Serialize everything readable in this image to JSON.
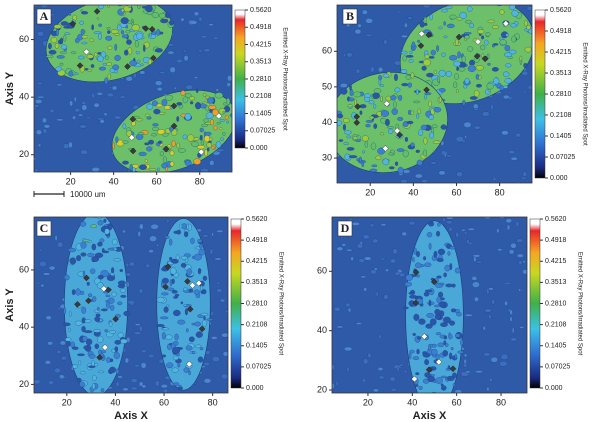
{
  "chart_data": [
    {
      "type": "contour",
      "label": "A",
      "y_label": "Axis Y",
      "scale_bar_label": "10000 um",
      "xlim": [
        3,
        95
      ],
      "ylim": [
        14,
        72
      ],
      "xticks": [
        20,
        40,
        60,
        80
      ],
      "yticks": [
        20,
        40,
        60
      ],
      "colorbar_label": "Emitted X-Ray Photons/Irradiated Spot",
      "clim": [
        0,
        0.562
      ],
      "colorbar_ticks": [
        {
          "value": 0,
          "label": "0.000"
        },
        0.07025,
        0.1405,
        0.2108,
        {
          "value": 0.281,
          "label": "0.2810"
        },
        0.3513,
        0.4215,
        0.4918,
        {
          "value": 0.562,
          "label": "0.5620"
        }
      ]
    },
    {
      "type": "contour",
      "label": "B",
      "xlim": [
        4.6,
        95
      ],
      "ylim": [
        23,
        73
      ],
      "xticks": [
        20,
        40,
        60,
        80
      ],
      "yticks": [
        30,
        40,
        50,
        60
      ],
      "colorbar_label": "Emitted X-Ray Photons/Irradiated Spot",
      "clim": [
        0,
        0.562
      ],
      "colorbar_ticks": [
        {
          "value": 0,
          "label": "0.000"
        },
        0.07025,
        0.1405,
        0.2108,
        {
          "value": 0.281,
          "label": "0.2810"
        },
        0.3513,
        0.4215,
        0.4918,
        {
          "value": 0.562,
          "label": "0.5620"
        }
      ]
    },
    {
      "type": "contour",
      "label": "C",
      "x_label": "Axis X",
      "y_label": "Axis Y",
      "xlim": [
        6.5,
        86.3
      ],
      "ylim": [
        17,
        78.5
      ],
      "xticks": [
        20,
        40,
        60,
        80
      ],
      "yticks": [
        20,
        40,
        60
      ],
      "colorbar_label": "Emitted X-Ray Photons/Irradiated Spot",
      "clim": [
        0,
        0.562
      ],
      "colorbar_ticks": [
        {
          "value": 0,
          "label": "0.000"
        },
        0.07025,
        0.1405,
        0.2108,
        {
          "value": 0.281,
          "label": "0.2810"
        },
        0.3513,
        0.4215,
        0.4918,
        {
          "value": 0.562,
          "label": "0.5620"
        }
      ]
    },
    {
      "type": "contour",
      "label": "D",
      "x_label": "Axis X",
      "xlim": [
        3.8,
        91.7
      ],
      "ylim": [
        19,
        78.3
      ],
      "xticks": [
        20,
        40,
        60,
        80
      ],
      "yticks": [
        20,
        40,
        60
      ],
      "colorbar_label": "Emitted X-Ray Photons/Irradiated Spot",
      "clim": [
        0,
        0.562
      ],
      "colorbar_ticks": [
        {
          "value": 0,
          "label": "0.000"
        },
        0.07025,
        0.1405,
        0.2108,
        {
          "value": 0.281,
          "label": "0.2810"
        },
        0.3513,
        0.4215,
        0.4918,
        {
          "value": 0.562,
          "label": "0.5620"
        }
      ]
    }
  ]
}
